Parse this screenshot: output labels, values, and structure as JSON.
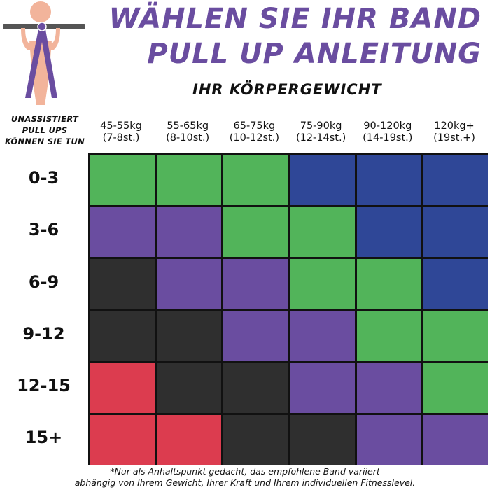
{
  "title_line1": "WÄHLEN SIE IHR BAND",
  "title_line2": "PULL UP ANLEITUNG",
  "subtitle": "IHR KÖRPERGEWICHT",
  "row_header": [
    "UNASSISTIERT",
    "PULL UPS",
    "KÖNNEN SIE TUN"
  ],
  "columns": [
    {
      "kg": "45-55kg",
      "st": "(7-8st.)"
    },
    {
      "kg": "55-65kg",
      "st": "(8-10st.)"
    },
    {
      "kg": "65-75kg",
      "st": "(10-12st.)"
    },
    {
      "kg": "75-90kg",
      "st": "(12-14st.)"
    },
    {
      "kg": "90-120kg",
      "st": "(14-19st.)"
    },
    {
      "kg": "120kg+",
      "st": "(19st.+)"
    }
  ],
  "rows": [
    "0-3",
    "3-6",
    "6-9",
    "9-12",
    "12-15",
    "15+"
  ],
  "band_colors": {
    "green": "#52b45a",
    "blue": "#2f4797",
    "purple": "#6a4da0",
    "black": "#2f2f2f",
    "red": "#dc3c4f"
  },
  "grid": [
    [
      "green",
      "green",
      "green",
      "blue",
      "blue",
      "blue"
    ],
    [
      "purple",
      "purple",
      "green",
      "green",
      "blue",
      "blue"
    ],
    [
      "black",
      "purple",
      "purple",
      "green",
      "green",
      "blue"
    ],
    [
      "black",
      "black",
      "purple",
      "purple",
      "green",
      "green"
    ],
    [
      "red",
      "black",
      "black",
      "purple",
      "purple",
      "green"
    ],
    [
      "red",
      "red",
      "black",
      "black",
      "purple",
      "purple"
    ]
  ],
  "footnote_line1": "*Nur als Anhaltspunkt gedacht, das empfohlene Band variiert",
  "footnote_line2": "abhängig von Ihrem Gewicht, Ihrer Kraft und Ihrem individuellen Fitnesslevel.",
  "accent_color": "#6a4da0",
  "skin_color": "#f2b49b",
  "bar_color": "#555555"
}
